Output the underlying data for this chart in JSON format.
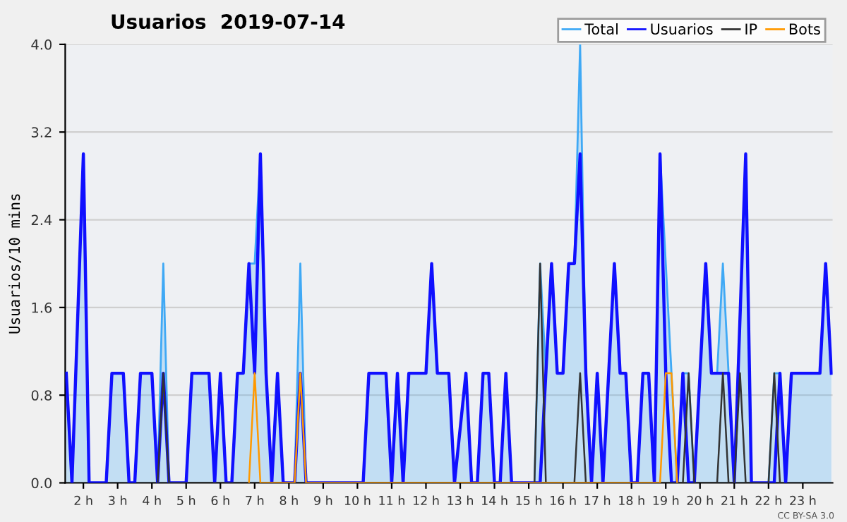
{
  "chart_data": {
    "type": "line",
    "title": "Usuarios  2019-07-14",
    "ylabel": "Usuarios/10 mins",
    "annotations": [
      "CC BY-SA 3.0"
    ],
    "xlim": [
      1.47,
      23.87
    ],
    "ylim": [
      0,
      4
    ],
    "xticks": [
      {
        "value": 2,
        "label": "2 h"
      },
      {
        "value": 3,
        "label": "3 h"
      },
      {
        "value": 4,
        "label": "4 h"
      },
      {
        "value": 5,
        "label": "5 h"
      },
      {
        "value": 6,
        "label": "6 h"
      },
      {
        "value": 7,
        "label": "7 h"
      },
      {
        "value": 8,
        "label": "8 h"
      },
      {
        "value": 9,
        "label": "9 h"
      },
      {
        "value": 10,
        "label": "10 h"
      },
      {
        "value": 11,
        "label": "11 h"
      },
      {
        "value": 12,
        "label": "12 h"
      },
      {
        "value": 13,
        "label": "13 h"
      },
      {
        "value": 14,
        "label": "14 h"
      },
      {
        "value": 15,
        "label": "15 h"
      },
      {
        "value": 16,
        "label": "16 h"
      },
      {
        "value": 17,
        "label": "17 h"
      },
      {
        "value": 18,
        "label": "18 h"
      },
      {
        "value": 19,
        "label": "19 h"
      },
      {
        "value": 20,
        "label": "20 h"
      },
      {
        "value": 21,
        "label": "21 h"
      },
      {
        "value": 22,
        "label": "22 h"
      },
      {
        "value": 23,
        "label": "23 h"
      }
    ],
    "yticks": [
      {
        "value": 0,
        "label": "0.0"
      },
      {
        "value": 0.8,
        "label": "0.8"
      },
      {
        "value": 1.6,
        "label": "1.6"
      },
      {
        "value": 2.4,
        "label": "2.4"
      },
      {
        "value": 3.2,
        "label": "3.2"
      },
      {
        "value": 4,
        "label": "4.0"
      }
    ],
    "grid": "y",
    "legend": "top right",
    "marker": "none",
    "line_style": "solid",
    "series": [
      {
        "name": "Total",
        "type": "area",
        "color": "#3fa9f5",
        "x": [
          1.5,
          1.667,
          2,
          2.167,
          2.667,
          2.833,
          3.167,
          3.333,
          3.5,
          3.667,
          4,
          4.167,
          4.333,
          4.5,
          5,
          5.167,
          5.667,
          5.833,
          6,
          6.167,
          6.333,
          6.5,
          6.667,
          6.833,
          7,
          7.167,
          7.333,
          7.5,
          7.667,
          7.833,
          8.167,
          8.333,
          8.5,
          10.167,
          10.333,
          10.833,
          11,
          11.167,
          11.333,
          11.5,
          12,
          12.167,
          12.333,
          12.667,
          12.833,
          13.167,
          13.333,
          13.5,
          13.667,
          13.833,
          14,
          14.167,
          14.333,
          14.5,
          15.167,
          15.333,
          15.5,
          15.667,
          15.833,
          16,
          16.167,
          16.333,
          16.5,
          16.667,
          16.833,
          17,
          17.167,
          17.5,
          17.667,
          17.833,
          18,
          18.167,
          18.333,
          18.5,
          18.667,
          18.833,
          19,
          19.167,
          19.333,
          19.5,
          19.667,
          19.833,
          20.167,
          20.333,
          20.5,
          20.667,
          20.833,
          21,
          21.333,
          21.5,
          22,
          22.167,
          22.333,
          22.5,
          22.667,
          23.5,
          23.667,
          23.833
        ],
        "values": [
          1,
          0,
          3,
          0,
          0,
          1,
          1,
          0,
          0,
          1,
          1,
          0,
          2,
          0,
          0,
          1,
          1,
          0,
          1,
          0,
          0,
          1,
          1,
          2,
          2,
          3,
          1,
          0,
          1,
          0,
          0,
          2,
          0,
          0,
          1,
          1,
          0,
          1,
          0,
          1,
          1,
          2,
          1,
          1,
          0,
          1,
          0,
          0,
          1,
          1,
          0,
          0,
          1,
          0,
          0,
          2,
          1,
          2,
          1,
          1,
          2,
          2,
          4,
          1,
          0,
          1,
          0,
          2,
          1,
          1,
          0,
          0,
          1,
          1,
          0,
          3,
          2,
          1,
          0,
          1,
          1,
          0,
          2,
          1,
          1,
          2,
          1,
          0,
          3,
          0,
          0,
          1,
          1,
          0,
          1,
          1,
          2,
          1
        ]
      },
      {
        "name": "Usuarios",
        "color": "#1010ff",
        "x": [
          1.5,
          1.667,
          2,
          2.167,
          2.667,
          2.833,
          3.167,
          3.333,
          3.5,
          3.667,
          4,
          4.167,
          4.333,
          4.5,
          5,
          5.167,
          5.667,
          5.833,
          6,
          6.167,
          6.333,
          6.5,
          6.667,
          6.833,
          7,
          7.167,
          7.333,
          7.5,
          7.667,
          7.833,
          8.167,
          8.333,
          8.5,
          10.167,
          10.333,
          10.833,
          11,
          11.167,
          11.333,
          11.5,
          12,
          12.167,
          12.333,
          12.667,
          12.833,
          13.167,
          13.333,
          13.5,
          13.667,
          13.833,
          14,
          14.167,
          14.333,
          14.5,
          15.333,
          15.5,
          15.667,
          15.833,
          16,
          16.167,
          16.333,
          16.5,
          16.667,
          16.833,
          17,
          17.167,
          17.5,
          17.667,
          17.833,
          18,
          18.167,
          18.333,
          18.5,
          18.667,
          18.833,
          19,
          19.167,
          19.333,
          19.5,
          19.667,
          19.833,
          20.167,
          20.333,
          20.833,
          21,
          21.333,
          21.5,
          22.167,
          22.333,
          22.5,
          22.667,
          23.5,
          23.667,
          23.833
        ],
        "values": [
          1,
          0,
          3,
          0,
          0,
          1,
          1,
          0,
          0,
          1,
          1,
          0,
          1,
          0,
          0,
          1,
          1,
          0,
          1,
          0,
          0,
          1,
          1,
          2,
          1,
          3,
          1,
          0,
          1,
          0,
          0,
          1,
          0,
          0,
          1,
          1,
          0,
          1,
          0,
          1,
          1,
          2,
          1,
          1,
          0,
          1,
          0,
          0,
          1,
          1,
          0,
          0,
          1,
          0,
          0,
          1,
          2,
          1,
          1,
          2,
          2,
          3,
          1,
          0,
          1,
          0,
          2,
          1,
          1,
          0,
          0,
          1,
          1,
          0,
          3,
          1,
          0,
          0,
          1,
          0,
          0,
          2,
          1,
          1,
          0,
          3,
          0,
          0,
          1,
          0,
          1,
          1,
          2,
          1
        ]
      },
      {
        "name": "IP",
        "color": "#333333",
        "x": [
          4.167,
          4.333,
          4.5,
          15.167,
          15.333,
          15.5,
          16.333,
          16.5,
          16.667,
          19.5,
          19.667,
          19.833,
          20.5,
          20.667,
          20.833,
          21,
          21.167,
          21.333,
          22,
          22.167,
          22.333
        ],
        "values": [
          0,
          1,
          0,
          0,
          2,
          0,
          0,
          1,
          0,
          0,
          1,
          0,
          0,
          1,
          0,
          0,
          1,
          0,
          0,
          1,
          0
        ]
      },
      {
        "name": "Bots",
        "color": "#ff9900",
        "x": [
          6.833,
          7,
          7.167,
          8.167,
          8.333,
          8.5,
          18.833,
          19,
          19.167,
          19.333
        ],
        "values": [
          0,
          1,
          0,
          0,
          1,
          0,
          0,
          1,
          1,
          0
        ]
      }
    ]
  }
}
